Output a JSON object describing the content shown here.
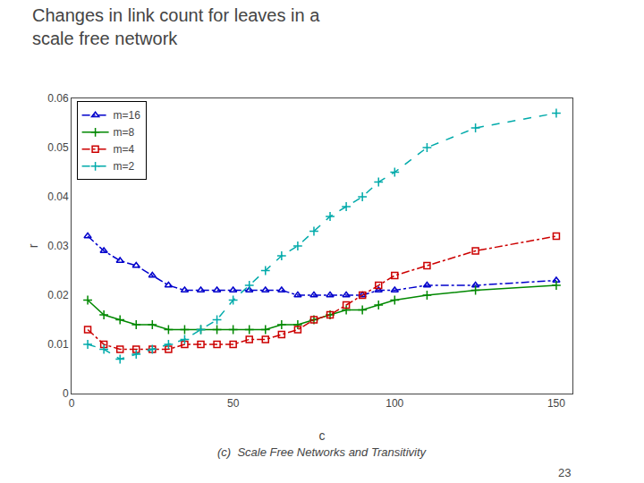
{
  "chart_data": {
    "type": "line",
    "title": "Changes in link count for leaves in a",
    "subtitle": "scale free network",
    "x_label": "c",
    "y_label": "r",
    "annotations": [
      "(c)  Scale Free Networks and Transitivity",
      "23"
    ],
    "x": [
      5,
      10,
      15,
      20,
      25,
      30,
      35,
      40,
      45,
      50,
      55,
      60,
      65,
      70,
      75,
      80,
      85,
      90,
      95,
      100,
      110,
      125,
      150
    ],
    "series": [
      {
        "name": "m=16",
        "color": "#0000CC",
        "line_style": "dashdot",
        "marker": "triangle-open",
        "values": [
          0.032,
          0.029,
          0.027,
          0.026,
          0.024,
          0.022,
          0.021,
          0.021,
          0.021,
          0.021,
          0.021,
          0.021,
          0.021,
          0.02,
          0.02,
          0.02,
          0.02,
          0.02,
          0.021,
          0.021,
          0.022,
          0.022,
          0.023
        ]
      },
      {
        "name": "m=8",
        "color": "#008800",
        "line_style": "solid",
        "marker": "plus",
        "values": [
          0.019,
          0.016,
          0.015,
          0.014,
          0.014,
          0.013,
          0.013,
          0.013,
          0.013,
          0.013,
          0.013,
          0.013,
          0.014,
          0.014,
          0.015,
          0.016,
          0.017,
          0.017,
          0.018,
          0.019,
          0.02,
          0.021,
          0.022
        ]
      },
      {
        "name": "m=4",
        "color": "#CC0000",
        "line_style": "dashdot",
        "marker": "square-open",
        "values": [
          0.013,
          0.01,
          0.009,
          0.009,
          0.009,
          0.009,
          0.01,
          0.01,
          0.01,
          0.01,
          0.011,
          0.011,
          0.012,
          0.013,
          0.015,
          0.016,
          0.018,
          0.02,
          0.022,
          0.024,
          0.026,
          0.029,
          0.032
        ]
      },
      {
        "name": "m=2",
        "color": "#00AAAA",
        "line_style": "dash",
        "marker": "plus",
        "values": [
          0.01,
          0.009,
          0.007,
          0.008,
          0.009,
          0.01,
          0.011,
          0.013,
          0.015,
          0.019,
          0.022,
          0.025,
          0.028,
          0.03,
          0.033,
          0.036,
          0.038,
          0.04,
          0.043,
          0.045,
          0.05,
          0.054,
          0.057
        ]
      }
    ],
    "xlim": [
      0,
      155
    ],
    "xticks": [
      0,
      50,
      100,
      150
    ],
    "ylim": [
      0,
      0.06
    ],
    "yticks": [
      0,
      0.01,
      0.02,
      0.03,
      0.04,
      0.05,
      0.06
    ],
    "grid": false,
    "legend": "upper left"
  }
}
